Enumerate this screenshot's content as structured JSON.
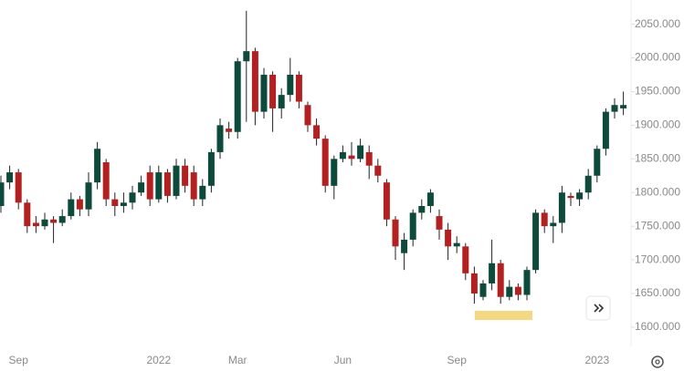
{
  "chart_data": {
    "type": "candlestick",
    "categories": [
      null,
      null,
      "Sep",
      null,
      null,
      null,
      null,
      null,
      null,
      null,
      null,
      null,
      null,
      null,
      null,
      null,
      null,
      null,
      "2022",
      null,
      null,
      null,
      null,
      null,
      null,
      null,
      null,
      "Mar",
      null,
      null,
      null,
      null,
      null,
      null,
      null,
      null,
      null,
      null,
      null,
      "Jun",
      null,
      null,
      null,
      null,
      null,
      null,
      null,
      null,
      null,
      null,
      null,
      null,
      "Sep",
      null,
      null,
      null,
      null,
      null,
      null,
      null,
      null,
      null,
      null,
      null,
      null,
      null,
      null,
      null,
      "2023",
      null,
      null,
      null
    ],
    "open": [
      1780,
      1815,
      1830,
      1785,
      1755,
      1750,
      1760,
      1755,
      1765,
      1790,
      1775,
      1815,
      1845,
      1790,
      1780,
      1785,
      1800,
      1830,
      1790,
      1830,
      1795,
      1840,
      1830,
      1790,
      1810,
      1860,
      1895,
      1890,
      1995,
      2010,
      1920,
      1975,
      1925,
      1945,
      1975,
      1930,
      1900,
      1880,
      1810,
      1850,
      1855,
      1850,
      1860,
      1840,
      1815,
      1760,
      1710,
      1730,
      1770,
      1780,
      1765,
      1745,
      1720,
      1720,
      1680,
      1645,
      1665,
      1695,
      1645,
      1660,
      1648,
      1685,
      1770,
      1750,
      1755,
      1795,
      1790,
      1800,
      1825,
      1865,
      1920,
      1925
    ],
    "high": [
      1825,
      1840,
      1835,
      1790,
      1765,
      1770,
      1765,
      1775,
      1800,
      1795,
      1830,
      1875,
      1850,
      1800,
      1800,
      1810,
      1825,
      1840,
      1840,
      1835,
      1850,
      1850,
      1840,
      1820,
      1865,
      1910,
      1905,
      2000,
      2070,
      2015,
      1985,
      1980,
      1955,
      2000,
      1980,
      1935,
      1910,
      1885,
      1855,
      1870,
      1875,
      1880,
      1870,
      1850,
      1820,
      1765,
      1740,
      1775,
      1790,
      1805,
      1775,
      1755,
      1735,
      1725,
      1690,
      1670,
      1730,
      1700,
      1670,
      1665,
      1690,
      1775,
      1775,
      1765,
      1810,
      1800,
      1805,
      1835,
      1870,
      1925,
      1940,
      1950
    ],
    "low": [
      1770,
      1805,
      1775,
      1740,
      1740,
      1745,
      1725,
      1750,
      1760,
      1765,
      1765,
      1805,
      1780,
      1765,
      1770,
      1775,
      1795,
      1780,
      1785,
      1785,
      1790,
      1800,
      1780,
      1780,
      1800,
      1850,
      1880,
      1880,
      1905,
      1900,
      1910,
      1890,
      1910,
      1935,
      1925,
      1890,
      1870,
      1800,
      1790,
      1845,
      1840,
      1845,
      1820,
      1815,
      1750,
      1700,
      1685,
      1720,
      1760,
      1770,
      1730,
      1700,
      1710,
      1670,
      1635,
      1640,
      1655,
      1635,
      1640,
      1640,
      1640,
      1680,
      1740,
      1725,
      1740,
      1780,
      1780,
      1790,
      1815,
      1855,
      1910,
      1915
    ],
    "close": [
      1815,
      1830,
      1785,
      1750,
      1750,
      1760,
      1755,
      1765,
      1790,
      1775,
      1815,
      1865,
      1790,
      1780,
      1785,
      1800,
      1815,
      1790,
      1830,
      1795,
      1840,
      1810,
      1790,
      1810,
      1860,
      1900,
      1890,
      1995,
      2010,
      1920,
      1975,
      1925,
      1945,
      1975,
      1935,
      1900,
      1880,
      1810,
      1850,
      1860,
      1850,
      1870,
      1840,
      1825,
      1760,
      1720,
      1730,
      1770,
      1780,
      1800,
      1745,
      1720,
      1725,
      1680,
      1650,
      1665,
      1695,
      1645,
      1660,
      1648,
      1685,
      1770,
      1750,
      1755,
      1800,
      1792,
      1800,
      1825,
      1865,
      1920,
      1930,
      1930
    ],
    "up_color": "#0c4a3c",
    "down_color": "#b3201f",
    "ylim": [
      1571.5,
      2086
    ],
    "yticks": [
      {
        "value": 1600,
        "label": "1600.000"
      },
      {
        "value": 1650,
        "label": "1650.000"
      },
      {
        "value": 1700,
        "label": "1700.000"
      },
      {
        "value": 1750,
        "label": "1750.000"
      },
      {
        "value": 1800,
        "label": "1800.000"
      },
      {
        "value": 1850,
        "label": "1850.000"
      },
      {
        "value": 1900,
        "label": "1900.000"
      },
      {
        "value": 1950,
        "label": "1950.000"
      },
      {
        "value": 2000,
        "label": "2000.000"
      },
      {
        "value": 2050,
        "label": "2050.000"
      }
    ]
  }
}
